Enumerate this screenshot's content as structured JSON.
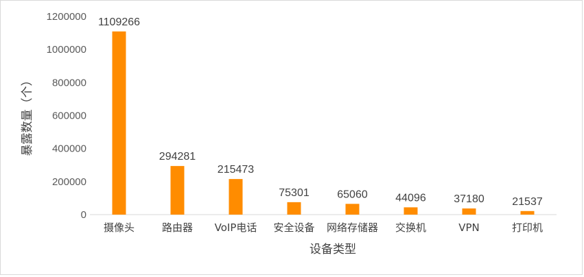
{
  "chart_data": {
    "type": "bar",
    "title": "",
    "xlabel": "设备类型",
    "ylabel": "暴露数量（个）",
    "categories": [
      "摄像头",
      "路由器",
      "VoIP电话",
      "安全设备",
      "网络存储器",
      "交换机",
      "VPN",
      "打印机"
    ],
    "values": [
      1109266,
      294281,
      215473,
      75301,
      65060,
      44096,
      37180,
      21537
    ],
    "data_labels": [
      "1109266",
      "294281",
      "215473",
      "75301",
      "65060",
      "44096",
      "37180",
      "21537"
    ],
    "yticks": [
      "0",
      "200000",
      "400000",
      "600000",
      "800000",
      "1000000",
      "1200000"
    ],
    "ylim": [
      0,
      1200000
    ],
    "grid": false,
    "legend": "none",
    "bar_color": "#FF8C00"
  }
}
